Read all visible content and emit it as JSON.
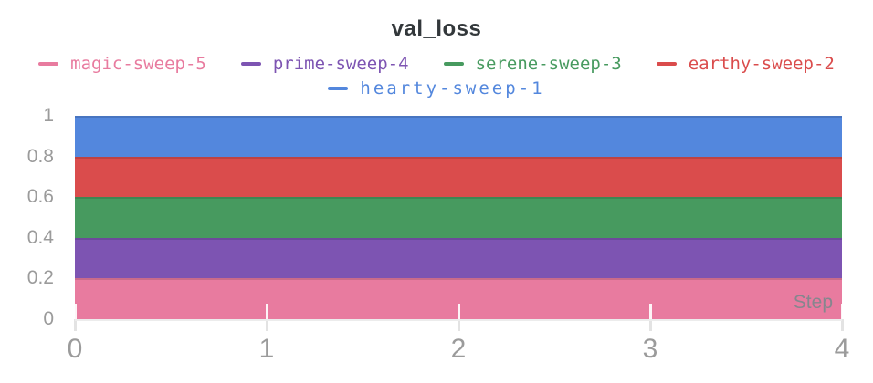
{
  "chart_data": {
    "type": "area",
    "title": "val_loss",
    "xlabel": "Step",
    "x": [
      0,
      1,
      2,
      3,
      4
    ],
    "series": [
      {
        "name": "hearty-sweep-1",
        "color": "#5387DD",
        "values": [
          1.0,
          1.0,
          1.0,
          1.0,
          1.0
        ]
      },
      {
        "name": "earthy-sweep-2",
        "color": "#DA4C4C",
        "values": [
          0.8,
          0.8,
          0.8,
          0.8,
          0.8
        ]
      },
      {
        "name": "serene-sweep-3",
        "color": "#479A5F",
        "values": [
          0.6,
          0.6,
          0.6,
          0.6,
          0.6
        ]
      },
      {
        "name": "prime-sweep-4",
        "color": "#7D54B2",
        "values": [
          0.4,
          0.4,
          0.4,
          0.4,
          0.4
        ]
      },
      {
        "name": "magic-sweep-5",
        "color": "#E87B9F",
        "values": [
          0.2,
          0.2,
          0.2,
          0.2,
          0.2
        ]
      }
    ],
    "xlim": [
      0,
      4
    ],
    "ylim": [
      0,
      1
    ],
    "x_tick_labels": [
      "0",
      "1",
      "2",
      "3",
      "4"
    ],
    "y_tick_labels": [
      "1",
      "0.8",
      "0.6",
      "0.4",
      "0.2",
      "0"
    ],
    "legend_position": "top",
    "grid": "ticks-only"
  },
  "legend": {
    "rows": [
      [
        "magic-sweep-5",
        "prime-sweep-4",
        "serene-sweep-3",
        "earthy-sweep-2"
      ],
      [
        "hearty-sweep-1"
      ]
    ]
  },
  "colors": {
    "title_text": "#33383B",
    "axis_label": "#9B9B9B",
    "step_label": "#86868E",
    "axis_line": "#ECECEC",
    "background": "#FFFFFF"
  }
}
